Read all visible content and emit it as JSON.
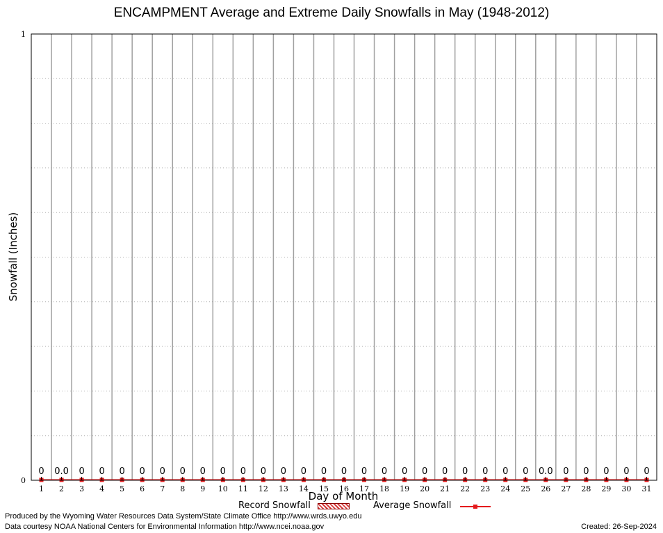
{
  "chart_data": {
    "type": "bar",
    "title": "ENCAMPMENT Average and Extreme Daily Snowfalls in May (1948-2012)",
    "xlabel": "Day of Month",
    "ylabel": "Snowfall (Inches)",
    "ylim": [
      0,
      1
    ],
    "y_ticks": [
      "0",
      "1"
    ],
    "categories": [
      "1",
      "2",
      "3",
      "4",
      "5",
      "6",
      "7",
      "8",
      "9",
      "10",
      "11",
      "12",
      "13",
      "14",
      "15",
      "16",
      "17",
      "18",
      "19",
      "20",
      "21",
      "22",
      "23",
      "24",
      "25",
      "26",
      "27",
      "28",
      "29",
      "30",
      "31"
    ],
    "series": [
      {
        "name": "Record Snowfall",
        "values": [
          0,
          0,
          0,
          0,
          0,
          0,
          0,
          0,
          0,
          0,
          0,
          0,
          0,
          0,
          0,
          0,
          0,
          0,
          0,
          0,
          0,
          0,
          0,
          0,
          0,
          0,
          0,
          0,
          0,
          0,
          0
        ]
      },
      {
        "name": "Average Snowfall",
        "values": [
          0,
          0,
          0,
          0,
          0,
          0,
          0,
          0,
          0,
          0,
          0,
          0,
          0,
          0,
          0,
          0,
          0,
          0,
          0,
          0,
          0,
          0,
          0,
          0,
          0,
          0,
          0,
          0,
          0,
          0,
          0
        ]
      }
    ],
    "data_labels": [
      "0",
      "0.0",
      "0",
      "0",
      "0",
      "0",
      "0",
      "0",
      "0",
      "0",
      "0",
      "0",
      "0",
      "0",
      "0",
      "0",
      "0",
      "0",
      "0",
      "0",
      "0",
      "0",
      "0",
      "0",
      "0",
      "0.0",
      "0",
      "0",
      "0",
      "0",
      "0"
    ],
    "grid": true,
    "legend_position": "bottom",
    "colors": {
      "record": "#d63b3b",
      "average": "#e41a1c",
      "vertical_grid": "#a0a0a0"
    }
  },
  "footer": {
    "credit_line1": "Produced by the Wyoming Water Resources Data System/State Climate Office http://www.wrds.uwyo.edu",
    "credit_line2": "Data courtesy NOAA National Centers for Environmental Information http://www.ncei.noaa.gov",
    "created": "Created:  26-Sep-2024"
  }
}
